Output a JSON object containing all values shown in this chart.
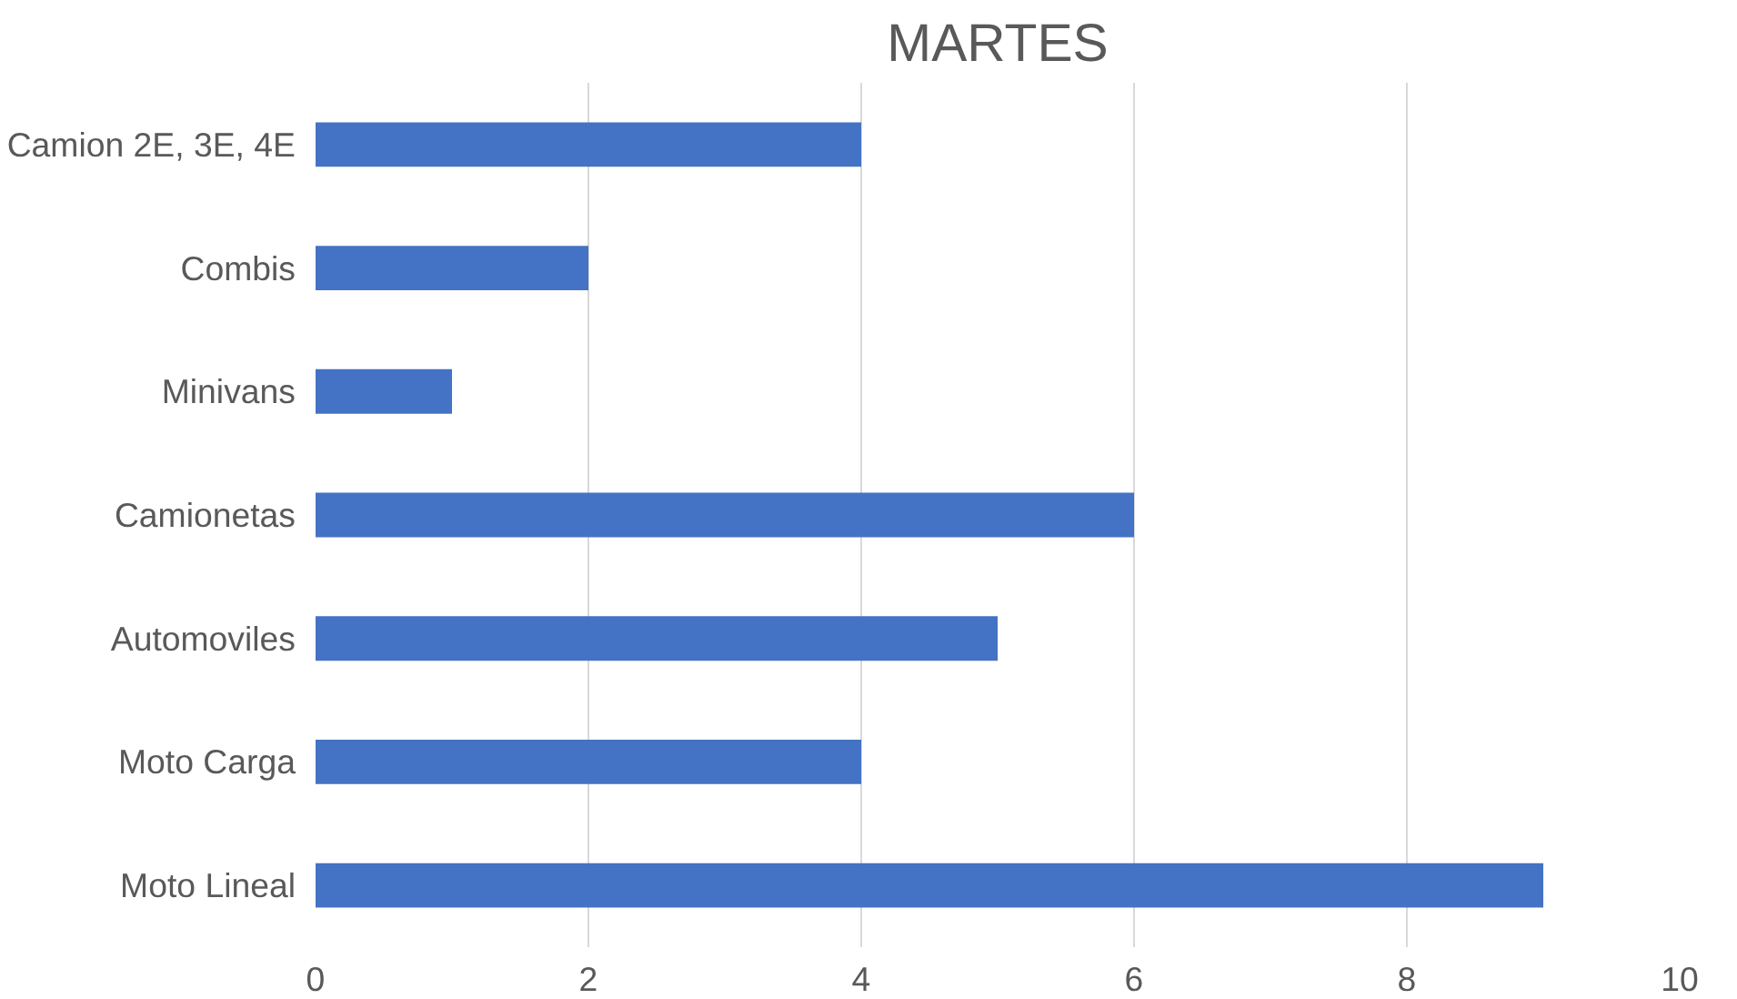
{
  "chart_data": {
    "type": "bar",
    "orientation": "horizontal",
    "title": "MARTES",
    "categories": [
      "Camion 2E, 3E, 4E",
      "Combis",
      "Minivans",
      "Camionetas",
      "Automoviles",
      "Moto Carga",
      "Moto Lineal"
    ],
    "values": [
      4,
      2,
      1,
      6,
      5,
      4,
      9
    ],
    "color": "#4472c4",
    "xlim": [
      0,
      10
    ],
    "xticks": [
      0,
      2,
      4,
      6,
      8,
      10
    ],
    "grid": "x"
  }
}
